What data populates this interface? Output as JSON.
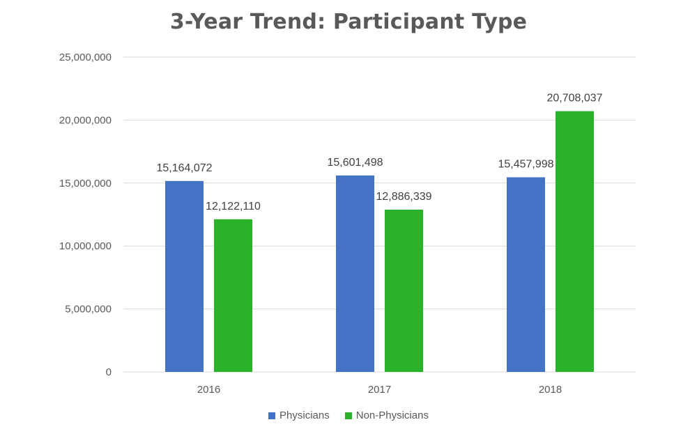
{
  "chart_data": {
    "type": "bar",
    "title": "3-Year Trend: Participant Type",
    "xlabel": "",
    "ylabel": "",
    "categories": [
      "2016",
      "2017",
      "2018"
    ],
    "series": [
      {
        "name": "Physicians",
        "color": "#4472C4",
        "values": [
          15164072,
          15601498,
          15457998
        ],
        "labels": [
          "15,164,072",
          "15,601,498",
          "15,457,998"
        ]
      },
      {
        "name": "Non-Physicians",
        "color": "#2BB22B",
        "values": [
          12122110,
          12886339,
          20708037
        ],
        "labels": [
          "12,122,110",
          "12,886,339",
          "20,708,037"
        ]
      }
    ],
    "ylim": [
      0,
      25000000
    ],
    "yticks": [
      0,
      5000000,
      10000000,
      15000000,
      20000000,
      25000000
    ],
    "ytick_labels": [
      "0",
      "5,000,000",
      "10,000,000",
      "15,000,000",
      "20,000,000",
      "25,000,000"
    ],
    "grid": true,
    "gridline_color": "#D9D9D9",
    "legend_position": "bottom"
  }
}
